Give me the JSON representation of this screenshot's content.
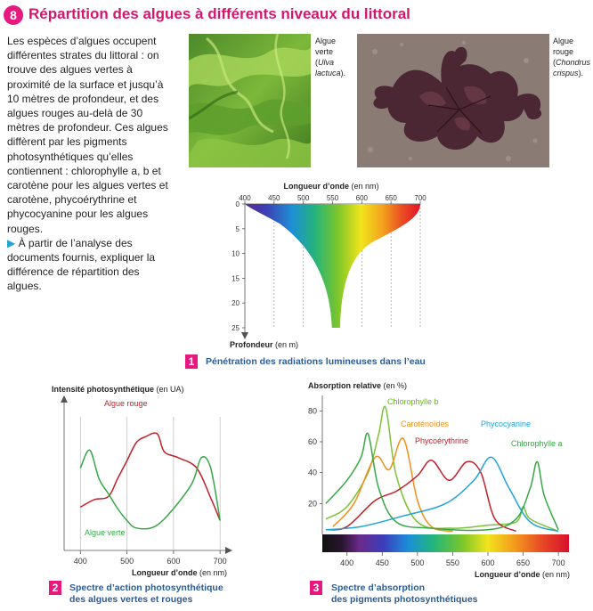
{
  "section": {
    "number": "8",
    "title": "Répartition des algues à différents niveaux du littoral"
  },
  "intro": {
    "paragraph": "Les espèces d’algues occupent différentes strates du littoral : on trouve des algues vertes à proximité de la surface et jusqu’à 10 mètres de profondeur, et des algues rouges au-delà de 30 mètres de profondeur. Ces algues diffèrent par les pigments photosynthétiques qu’elles contiennent : chlorophylle a, b et carotène pour les algues vertes et carotène, phycoérythrine et phycocyanine pour les algues rouges.",
    "instruction": "À partir de l’analyse des documents fournis, expliquer la différence de répartition des algues."
  },
  "photos": [
    {
      "caption_line1": "Algue",
      "caption_line2": "verte",
      "caption_latin": "Ulva lactuca"
    },
    {
      "caption_line1": "Algue",
      "caption_line2": "rouge",
      "caption_latin": "Chondrus crispus"
    }
  ],
  "figure1": {
    "number": "1",
    "caption": "Pénétration des radiations lumineuses dans l’eau",
    "x_title": "Longueur d’onde",
    "x_unit": "(en nm)",
    "y_title": "Profondeur",
    "y_unit": "(en m)",
    "x_ticks": [
      "400",
      "450",
      "500",
      "550",
      "600",
      "650",
      "700"
    ],
    "y_ticks": [
      "0",
      "5",
      "10",
      "15",
      "20",
      "25"
    ]
  },
  "figure2": {
    "number": "2",
    "caption_line1": "Spectre d’action photosynthétique",
    "caption_line2": "des algues vertes et rouges",
    "y_title": "Intensité photosynthétique",
    "y_unit": "(en UA)",
    "x_title": "Longueur d’onde",
    "x_unit": "(en nm)",
    "x_ticks": [
      "400",
      "500",
      "600",
      "700"
    ],
    "series_labels": {
      "red": "Algue rouge",
      "green": "Algue verte"
    }
  },
  "figure3": {
    "number": "3",
    "caption_line1": "Spectre d’absorption",
    "caption_line2": "des pigments photosynthétiques",
    "y_title": "Absorption relative",
    "y_unit": "(en %)",
    "x_title": "Longueur d’onde",
    "x_unit": "(en nm)",
    "x_ticks": [
      "400",
      "450",
      "500",
      "550",
      "600",
      "650",
      "700"
    ],
    "y_ticks": [
      "20",
      "40",
      "60",
      "80"
    ],
    "series_labels": {
      "chlb": "Chlorophylle b",
      "carot": "Caroténoïdes",
      "phycoe": "Phycoérythrine",
      "phycoc": "Phycocyanine",
      "chla": "Chlorophylle a"
    }
  },
  "colors": {
    "accent": "#e5197e",
    "caption_blue": "#2c5b94",
    "red_series": "#c0202a",
    "green_series": "#35a845",
    "orange_series": "#f0901c",
    "blue_series": "#1ea4d8",
    "lime_series": "#7cc23a"
  },
  "chart_data": [
    {
      "type": "area",
      "title": "Pénétration des radiations lumineuses dans l’eau",
      "xlabel": "Longueur d’onde (en nm)",
      "ylabel": "Profondeur (en m)",
      "xlim": [
        400,
        700
      ],
      "ylim": [
        0,
        25
      ],
      "y_inverted": true,
      "series": [
        {
          "x": [
            400,
            450,
            500,
            525,
            550,
            570,
            600,
            650,
            700
          ],
          "y": [
            0,
            2,
            6,
            12,
            25,
            12,
            7,
            5,
            0
          ]
        }
      ]
    },
    {
      "type": "line",
      "title": "Spectre d’action photosynthétique des algues vertes et rouges",
      "xlabel": "Longueur d’onde (en nm)",
      "ylabel": "Intensité photosynthétique (en UA)",
      "xlim": [
        365,
        715
      ],
      "ylim": [
        0,
        100
      ],
      "series": [
        {
          "name": "Algue rouge",
          "x": [
            400,
            430,
            460,
            480,
            500,
            520,
            540,
            565,
            580,
            610,
            650,
            680,
            700
          ],
          "y": [
            29,
            34,
            36,
            48,
            60,
            72,
            76,
            78,
            66,
            62,
            55,
            35,
            20
          ]
        },
        {
          "name": "Algue verte",
          "x": [
            400,
            420,
            440,
            460,
            480,
            500,
            520,
            560,
            600,
            640,
            660,
            680,
            700
          ],
          "y": [
            55,
            67,
            48,
            38,
            28,
            20,
            15,
            16,
            28,
            45,
            62,
            55,
            20
          ]
        }
      ]
    },
    {
      "type": "line",
      "title": "Spectre d’absorption des pigments photosynthétiques",
      "xlabel": "Longueur d’onde (en nm)",
      "ylabel": "Absorption relative (en %)",
      "xlim": [
        365,
        715
      ],
      "ylim": [
        0,
        90
      ],
      "x_ticks": [
        400,
        450,
        500,
        550,
        600,
        650,
        700
      ],
      "y_ticks": [
        20,
        40,
        60,
        80
      ],
      "series": [
        {
          "name": "Chlorophylle b",
          "x": [
            370,
            400,
            430,
            445,
            455,
            470,
            500,
            550,
            600,
            640,
            650,
            660,
            700
          ],
          "y": [
            10,
            18,
            40,
            65,
            82,
            38,
            8,
            4,
            6,
            8,
            18,
            10,
            2
          ]
        },
        {
          "name": "Caroténoïdes",
          "x": [
            380,
            410,
            440,
            460,
            480,
            500,
            520,
            550
          ],
          "y": [
            5,
            20,
            50,
            42,
            62,
            22,
            5,
            2
          ]
        },
        {
          "name": "Phycoérythrine",
          "x": [
            370,
            400,
            440,
            470,
            500,
            520,
            545,
            570,
            590,
            610,
            640
          ],
          "y": [
            3,
            5,
            22,
            28,
            38,
            48,
            35,
            47,
            40,
            10,
            2
          ]
        },
        {
          "name": "Phycocyanine",
          "x": [
            370,
            420,
            480,
            540,
            580,
            605,
            630,
            660,
            700
          ],
          "y": [
            3,
            5,
            12,
            20,
            35,
            50,
            30,
            8,
            2
          ]
        },
        {
          "name": "Chlorophylle a",
          "x": [
            370,
            400,
            420,
            430,
            445,
            470,
            520,
            600,
            640,
            660,
            670,
            680,
            700
          ],
          "y": [
            20,
            35,
            50,
            65,
            30,
            8,
            4,
            3,
            10,
            30,
            47,
            25,
            3
          ]
        }
      ]
    }
  ]
}
